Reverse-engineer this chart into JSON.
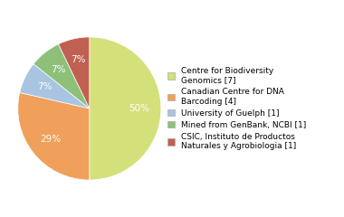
{
  "labels": [
    "Centre for Biodiversity\nGenomics [7]",
    "Canadian Centre for DNA\nBarcoding [4]",
    "University of Guelph [1]",
    "Mined from GenBank, NCBI [1]",
    "CSIC, Instituto de Productos\nNaturales y Agrobiologia [1]"
  ],
  "values": [
    7,
    4,
    1,
    1,
    1
  ],
  "colors": [
    "#d4e07a",
    "#f0a05a",
    "#a8c4e0",
    "#8ec07a",
    "#c06050"
  ],
  "text_color": "white",
  "background_color": "#ffffff",
  "startangle": 90,
  "figsize": [
    3.8,
    2.4
  ],
  "dpi": 100
}
